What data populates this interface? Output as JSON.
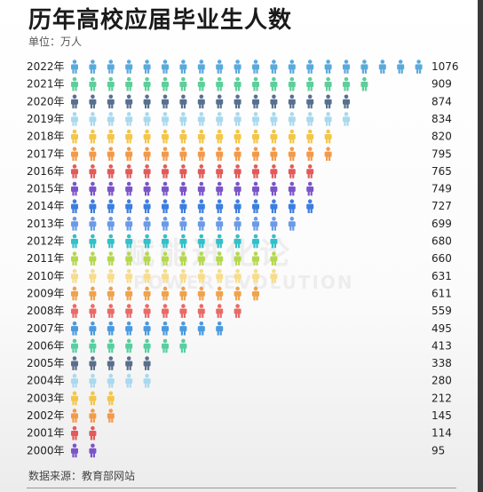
{
  "title": "历年高校应届毕业生人数",
  "unit_label": "单位：万人",
  "source_label": "数据来源：教育部网站",
  "watermark_text": "赋能进化论",
  "watermark_sub": "POWER EVOLUTION",
  "chart_data": {
    "type": "pictograph",
    "unit": "万人",
    "icon": "person-icon",
    "years": [
      "2022年",
      "2021年",
      "2020年",
      "2019年",
      "2018年",
      "2017年",
      "2016年",
      "2015年",
      "2014年",
      "2013年",
      "2012年",
      "2011年",
      "2010年",
      "2009年",
      "2008年",
      "2007年",
      "2006年",
      "2005年",
      "2004年",
      "2003年",
      "2002年",
      "2001年",
      "2000年"
    ],
    "values": [
      1076,
      909,
      874,
      834,
      820,
      795,
      765,
      749,
      727,
      699,
      680,
      660,
      631,
      611,
      559,
      495,
      413,
      338,
      280,
      212,
      145,
      114,
      95
    ],
    "icon_counts": [
      20,
      17,
      16,
      16,
      15,
      15,
      14,
      14,
      14,
      13,
      12,
      12,
      12,
      11,
      10,
      9,
      7,
      5,
      5,
      3,
      3,
      2,
      2
    ],
    "colors": [
      "#5aa9dc",
      "#5ccf9a",
      "#58708f",
      "#a9d9ee",
      "#f3c64a",
      "#f39a4a",
      "#e25a5a",
      "#7a55c8",
      "#3c7ee0",
      "#6a9ae8",
      "#33c0c8",
      "#b5d84c",
      "#f6dc8c",
      "#f0a24c",
      "#ea6a66",
      "#4a9ae0",
      "#58cfa0",
      "#5a6e8c",
      "#a9d9ee",
      "#f3c64a",
      "#f39a4a",
      "#e25a5a",
      "#7a55c8"
    ]
  }
}
